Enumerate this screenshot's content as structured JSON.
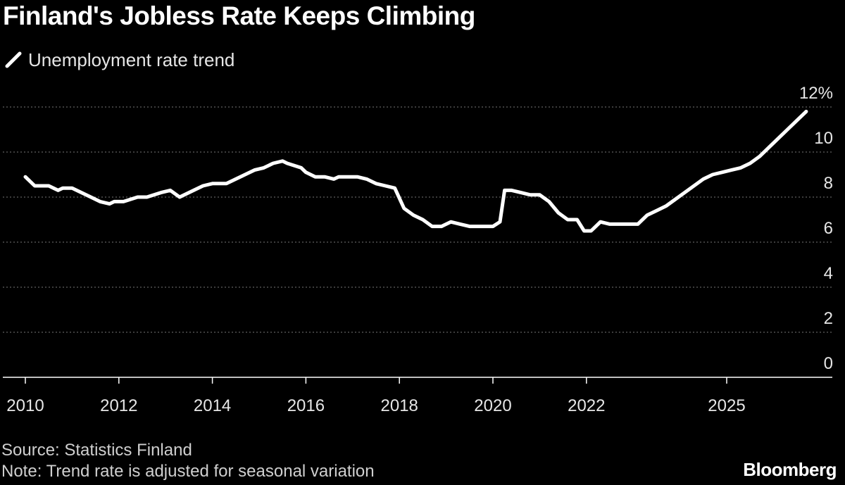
{
  "header": {
    "title": "Finland's Jobless Rate Keeps Climbing"
  },
  "footer": {
    "source": "Source: Statistics Finland",
    "note": "Note: Trend rate is adjusted for seasonal variation",
    "brand": "Bloomberg"
  },
  "colors": {
    "background": "#000000",
    "series": "#ffffff",
    "grid": "#777777",
    "axis_text": "#e6e6e6"
  },
  "chart_data": {
    "type": "line",
    "title": "Finland's Jobless Rate Keeps Climbing",
    "xlabel": "",
    "ylabel": "",
    "ylim": [
      0,
      12
    ],
    "xlim": [
      2010,
      2026.7
    ],
    "y_ticks": [
      0,
      2,
      4,
      6,
      8,
      10,
      12
    ],
    "y_tick_labels": [
      "0",
      "2",
      "4",
      "6",
      "8",
      "10",
      "12%"
    ],
    "x_ticks": [
      2010,
      2012,
      2014,
      2016,
      2018,
      2020,
      2022,
      2025
    ],
    "x_tick_labels": [
      "2010",
      "2012",
      "2014",
      "2016",
      "2018",
      "2020",
      "2022",
      "2025"
    ],
    "grid": true,
    "legend": "top-left",
    "series": [
      {
        "name": "Unemployment rate trend",
        "x": [
          2010.0,
          2010.2,
          2010.5,
          2010.7,
          2010.8,
          2011.0,
          2011.2,
          2011.4,
          2011.6,
          2011.8,
          2011.9,
          2012.1,
          2012.4,
          2012.6,
          2012.9,
          2013.1,
          2013.3,
          2013.4,
          2013.6,
          2013.8,
          2014.0,
          2014.3,
          2014.5,
          2014.7,
          2014.9,
          2015.1,
          2015.3,
          2015.5,
          2015.6,
          2015.9,
          2016.0,
          2016.2,
          2016.4,
          2016.6,
          2016.7,
          2016.9,
          2017.1,
          2017.3,
          2017.5,
          2017.7,
          2017.9,
          2018.1,
          2018.3,
          2018.5,
          2018.7,
          2018.9,
          2019.1,
          2019.3,
          2019.5,
          2019.7,
          2019.8,
          2020.0,
          2020.15,
          2020.25,
          2020.4,
          2020.6,
          2020.8,
          2021.0,
          2021.2,
          2021.4,
          2021.6,
          2021.8,
          2021.95,
          2022.1,
          2022.2,
          2022.3,
          2022.5,
          2022.8,
          2023.1,
          2023.3,
          2023.5,
          2023.7,
          2023.9,
          2024.1,
          2024.3,
          2024.5,
          2024.7,
          2024.9,
          2025.1,
          2025.3,
          2025.5,
          2025.7,
          2025.9,
          2026.1,
          2026.3,
          2026.5,
          2026.7
        ],
        "values": [
          8.9,
          8.5,
          8.5,
          8.3,
          8.4,
          8.4,
          8.2,
          8.0,
          7.8,
          7.7,
          7.8,
          7.8,
          8.0,
          8.0,
          8.2,
          8.3,
          8.0,
          8.1,
          8.3,
          8.5,
          8.6,
          8.6,
          8.8,
          9.0,
          9.2,
          9.3,
          9.5,
          9.6,
          9.5,
          9.3,
          9.1,
          8.9,
          8.9,
          8.8,
          8.9,
          8.9,
          8.9,
          8.8,
          8.6,
          8.5,
          8.4,
          7.5,
          7.2,
          7.0,
          6.7,
          6.7,
          6.9,
          6.8,
          6.7,
          6.7,
          6.7,
          6.7,
          6.9,
          8.3,
          8.3,
          8.2,
          8.1,
          8.1,
          7.8,
          7.3,
          7.0,
          7.0,
          6.5,
          6.5,
          6.7,
          6.9,
          6.8,
          6.8,
          6.8,
          7.2,
          7.4,
          7.6,
          7.9,
          8.2,
          8.5,
          8.8,
          9.0,
          9.1,
          9.2,
          9.3,
          9.5,
          9.8,
          10.2,
          10.6,
          11.0,
          11.4,
          11.8
        ]
      }
    ]
  }
}
